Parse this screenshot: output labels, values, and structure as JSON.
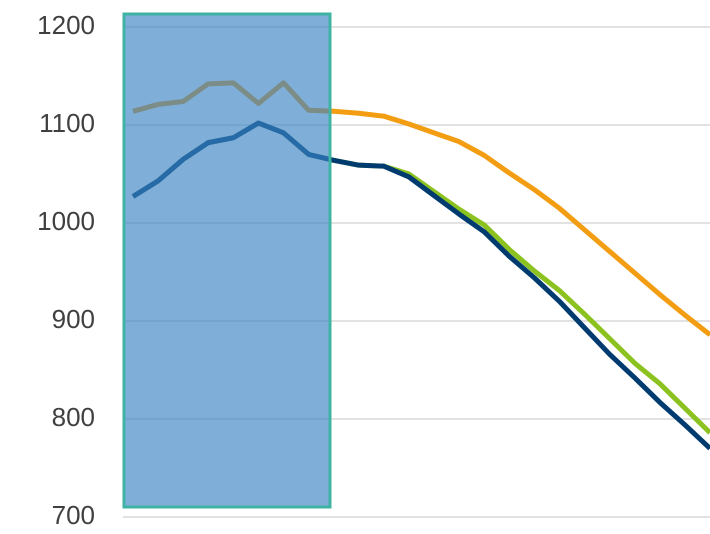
{
  "chart_data": {
    "type": "line",
    "categories": [
      null,
      null,
      null,
      null,
      null,
      null,
      null,
      null,
      null,
      null,
      null,
      null,
      null,
      null,
      null,
      null,
      null,
      null,
      null,
      null,
      null,
      null,
      null,
      null
    ],
    "series": [
      {
        "color": "#f29d12",
        "values": [
          1114,
          1121,
          1124,
          1142,
          1143,
          1122,
          1143,
          1115,
          1114,
          1112,
          1109,
          1101,
          1092,
          1083,
          1069,
          1051,
          1034,
          1015,
          993,
          971,
          949,
          927,
          906,
          886
        ]
      },
      {
        "color": "#8cc21f",
        "values": [
          1027,
          1043,
          1065,
          1082,
          1087,
          1102,
          1092,
          1070,
          1064,
          1059,
          1058,
          1050,
          1032,
          1014,
          998,
          973,
          951,
          931,
          907,
          882,
          857,
          836,
          811,
          786
        ]
      },
      {
        "color": "#003b70",
        "values": [
          1027,
          1043,
          1065,
          1082,
          1087,
          1102,
          1092,
          1070,
          1064,
          1059,
          1058,
          1047,
          1028,
          1009,
          991,
          966,
          944,
          920,
          893,
          866,
          842,
          817,
          794,
          770
        ]
      }
    ],
    "ylim": [
      700,
      1200
    ],
    "yticks": [
      700,
      800,
      900,
      1000,
      1100,
      1200
    ],
    "grid": true
  }
}
